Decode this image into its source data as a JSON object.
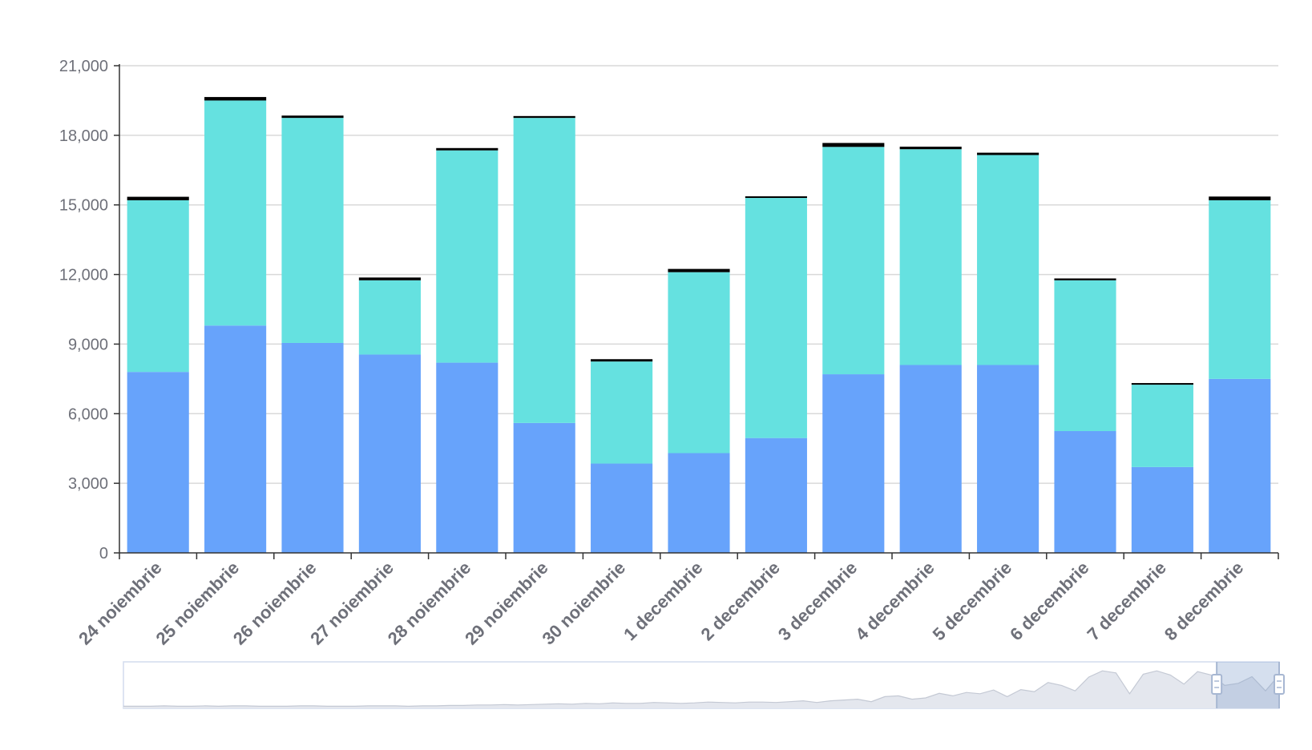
{
  "chart_data": {
    "type": "bar",
    "stacked": true,
    "categories": [
      "24 noiembrie",
      "25 noiembrie",
      "26 noiembrie",
      "27 noiembrie",
      "28 noiembrie",
      "29 noiembrie",
      "30 noiembrie",
      "1 decembrie",
      "2 decembrie",
      "3 decembrie",
      "4 decembrie",
      "5 decembrie",
      "6 decembrie",
      "7 decembrie",
      "8 decembrie"
    ],
    "series": [
      {
        "color": "#67a3fb",
        "values": [
          7800,
          9800,
          9050,
          8550,
          8200,
          5600,
          3850,
          4300,
          4950,
          7700,
          8100,
          8100,
          5250,
          3700,
          7500
        ]
      },
      {
        "color": "#65e1e0",
        "values": [
          7400,
          9700,
          9700,
          3200,
          9150,
          13150,
          4400,
          7800,
          10350,
          9800,
          9300,
          9050,
          6500,
          3550,
          7700
        ]
      },
      {
        "color": "#000000",
        "values": [
          150,
          150,
          100,
          120,
          100,
          80,
          100,
          140,
          70,
          170,
          110,
          100,
          80,
          70,
          160
        ]
      }
    ],
    "yticks": [
      "0",
      "3,000",
      "6,000",
      "9,000",
      "12,000",
      "15,000",
      "18,000",
      "21,000"
    ],
    "ylim": [
      0,
      21000
    ],
    "grid": true,
    "legend": "none",
    "datazoom": {
      "window_start": 0.946,
      "window_end": 1.0,
      "overview": [
        0.05,
        0.05,
        0.05,
        0.06,
        0.05,
        0.05,
        0.06,
        0.05,
        0.06,
        0.06,
        0.05,
        0.05,
        0.05,
        0.06,
        0.06,
        0.05,
        0.05,
        0.05,
        0.06,
        0.06,
        0.06,
        0.05,
        0.06,
        0.06,
        0.07,
        0.07,
        0.08,
        0.08,
        0.09,
        0.08,
        0.09,
        0.1,
        0.11,
        0.1,
        0.12,
        0.11,
        0.13,
        0.12,
        0.12,
        0.14,
        0.13,
        0.12,
        0.13,
        0.15,
        0.14,
        0.13,
        0.15,
        0.15,
        0.14,
        0.16,
        0.18,
        0.14,
        0.18,
        0.2,
        0.22,
        0.16,
        0.28,
        0.3,
        0.22,
        0.25,
        0.36,
        0.3,
        0.38,
        0.35,
        0.44,
        0.28,
        0.45,
        0.4,
        0.62,
        0.55,
        0.42,
        0.75,
        0.9,
        0.85,
        0.35,
        0.82,
        0.9,
        0.8,
        0.58,
        0.88,
        0.8,
        0.55,
        0.6,
        0.76,
        0.42,
        0.8
      ]
    }
  }
}
